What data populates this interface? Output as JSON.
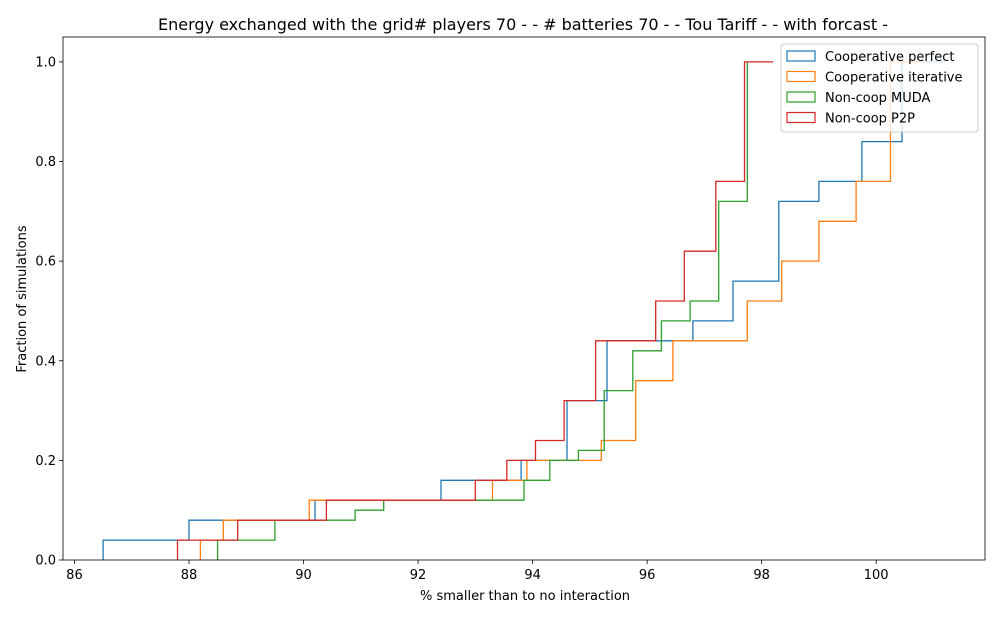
{
  "chart_data": {
    "type": "line",
    "title": "Energy exchanged with the grid# players 70 - - # batteries 70 - - Tou Tariff -  - with forcast -",
    "xlabel": "% smaller than to no interaction",
    "ylabel": "Fraction of simulations",
    "xlim": [
      85.8,
      101.9
    ],
    "ylim": [
      0,
      1.05
    ],
    "xticks": [
      86,
      88,
      90,
      92,
      94,
      96,
      98,
      100
    ],
    "yticks": [
      0.0,
      0.2,
      0.4,
      0.6,
      0.8,
      1.0
    ],
    "xtick_labels": [
      "86",
      "88",
      "90",
      "92",
      "94",
      "96",
      "98",
      "100"
    ],
    "ytick_labels": [
      "0.0",
      "0.2",
      "0.4",
      "0.6",
      "0.8",
      "1.0"
    ],
    "grid": false,
    "legend_position": "top-right",
    "series": [
      {
        "name": "Cooperative perfect",
        "color": "#1f77b4",
        "points": [
          [
            86.5,
            0
          ],
          [
            86.5,
            0.04
          ],
          [
            88.0,
            0.04
          ],
          [
            88.0,
            0.08
          ],
          [
            90.2,
            0.08
          ],
          [
            90.2,
            0.12
          ],
          [
            92.4,
            0.12
          ],
          [
            92.4,
            0.16
          ],
          [
            93.8,
            0.16
          ],
          [
            93.8,
            0.2
          ],
          [
            94.6,
            0.2
          ],
          [
            94.6,
            0.32
          ],
          [
            95.3,
            0.32
          ],
          [
            95.3,
            0.44
          ],
          [
            96.8,
            0.44
          ],
          [
            96.8,
            0.48
          ],
          [
            97.5,
            0.48
          ],
          [
            97.5,
            0.56
          ],
          [
            98.3,
            0.56
          ],
          [
            98.3,
            0.72
          ],
          [
            99.0,
            0.72
          ],
          [
            99.0,
            0.76
          ],
          [
            99.75,
            0.76
          ],
          [
            99.75,
            0.84
          ],
          [
            100.45,
            0.84
          ],
          [
            100.45,
            1.0
          ],
          [
            101.2,
            1.0
          ]
        ]
      },
      {
        "name": "Cooperative iterative",
        "color": "#ff7f0e",
        "points": [
          [
            88.2,
            0
          ],
          [
            88.2,
            0.04
          ],
          [
            88.6,
            0.04
          ],
          [
            88.6,
            0.08
          ],
          [
            90.1,
            0.08
          ],
          [
            90.1,
            0.12
          ],
          [
            93.3,
            0.12
          ],
          [
            93.3,
            0.16
          ],
          [
            93.9,
            0.16
          ],
          [
            93.9,
            0.2
          ],
          [
            95.2,
            0.2
          ],
          [
            95.2,
            0.24
          ],
          [
            95.8,
            0.24
          ],
          [
            95.8,
            0.36
          ],
          [
            96.45,
            0.36
          ],
          [
            96.45,
            0.44
          ],
          [
            97.75,
            0.44
          ],
          [
            97.75,
            0.52
          ],
          [
            98.35,
            0.52
          ],
          [
            98.35,
            0.6
          ],
          [
            99.0,
            0.6
          ],
          [
            99.0,
            0.68
          ],
          [
            99.65,
            0.68
          ],
          [
            99.65,
            0.76
          ],
          [
            100.25,
            0.76
          ],
          [
            100.25,
            1.0
          ],
          [
            100.8,
            1.0
          ]
        ]
      },
      {
        "name": "Non-coop MUDA",
        "color": "#2ca02c",
        "points": [
          [
            88.5,
            0
          ],
          [
            88.5,
            0.04
          ],
          [
            89.5,
            0.04
          ],
          [
            89.5,
            0.08
          ],
          [
            90.9,
            0.08
          ],
          [
            90.9,
            0.1
          ],
          [
            91.4,
            0.1
          ],
          [
            91.4,
            0.12
          ],
          [
            93.85,
            0.12
          ],
          [
            93.85,
            0.16
          ],
          [
            94.3,
            0.16
          ],
          [
            94.3,
            0.2
          ],
          [
            94.8,
            0.2
          ],
          [
            94.8,
            0.22
          ],
          [
            95.25,
            0.22
          ],
          [
            95.25,
            0.34
          ],
          [
            95.75,
            0.34
          ],
          [
            95.75,
            0.42
          ],
          [
            96.25,
            0.42
          ],
          [
            96.25,
            0.48
          ],
          [
            96.75,
            0.48
          ],
          [
            96.75,
            0.52
          ],
          [
            97.25,
            0.52
          ],
          [
            97.25,
            0.72
          ],
          [
            97.75,
            0.72
          ],
          [
            97.75,
            1.0
          ]
        ]
      },
      {
        "name": "Non-coop P2P",
        "color": "#d62728",
        "points": [
          [
            87.8,
            0
          ],
          [
            87.8,
            0.04
          ],
          [
            88.85,
            0.04
          ],
          [
            88.85,
            0.08
          ],
          [
            90.4,
            0.08
          ],
          [
            90.4,
            0.12
          ],
          [
            93.0,
            0.12
          ],
          [
            93.0,
            0.16
          ],
          [
            93.55,
            0.16
          ],
          [
            93.55,
            0.2
          ],
          [
            94.05,
            0.2
          ],
          [
            94.05,
            0.24
          ],
          [
            94.55,
            0.24
          ],
          [
            94.55,
            0.32
          ],
          [
            95.1,
            0.32
          ],
          [
            95.1,
            0.44
          ],
          [
            96.15,
            0.44
          ],
          [
            96.15,
            0.52
          ],
          [
            96.65,
            0.52
          ],
          [
            96.65,
            0.62
          ],
          [
            97.2,
            0.62
          ],
          [
            97.2,
            0.76
          ],
          [
            97.7,
            0.76
          ],
          [
            97.7,
            1.0
          ],
          [
            98.2,
            1.0
          ]
        ]
      }
    ]
  }
}
